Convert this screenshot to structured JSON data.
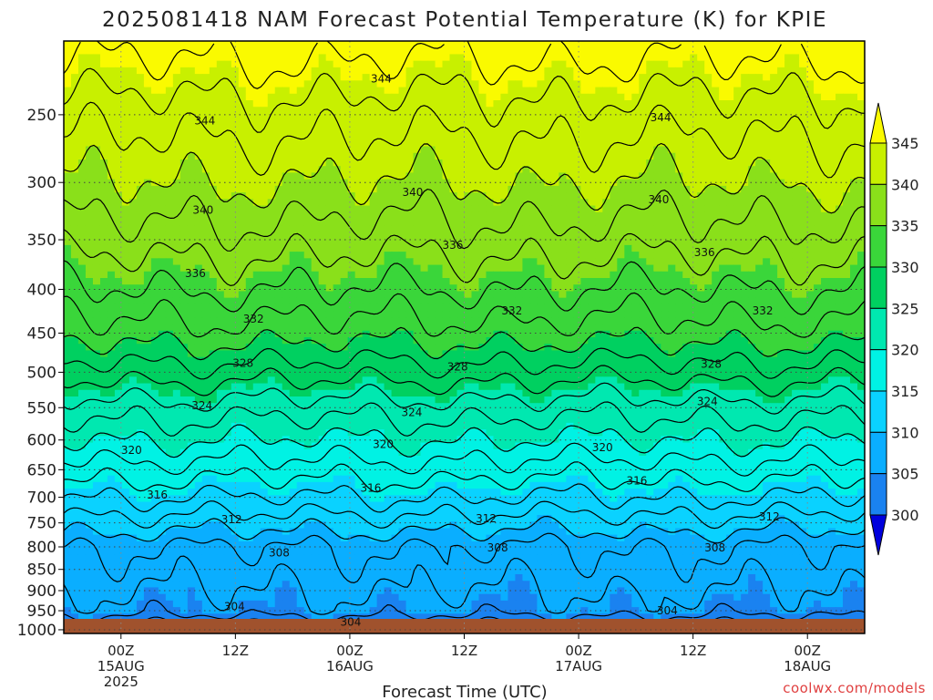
{
  "chart_data": {
    "type": "heatmap",
    "title": "2025081418 NAM Forecast Potential Temperature (K) for KPIE",
    "xlabel": "Forecast Time (UTC)",
    "ylabel": "",
    "x_range_hours": [
      0,
      84
    ],
    "x_ticks": [
      {
        "hour": 6,
        "lines": [
          "00Z",
          "15AUG",
          "2025"
        ]
      },
      {
        "hour": 18,
        "lines": [
          "12Z"
        ]
      },
      {
        "hour": 30,
        "lines": [
          "00Z",
          "16AUG"
        ]
      },
      {
        "hour": 42,
        "lines": [
          "12Z"
        ]
      },
      {
        "hour": 54,
        "lines": [
          "00Z",
          "17AUG"
        ]
      },
      {
        "hour": 66,
        "lines": [
          "12Z"
        ]
      },
      {
        "hour": 78,
        "lines": [
          "00Z",
          "18AUG"
        ]
      }
    ],
    "y_ticks_hpa": [
      250,
      300,
      350,
      400,
      450,
      500,
      550,
      600,
      650,
      700,
      750,
      800,
      850,
      900,
      950,
      1000
    ],
    "ylim_hpa": [
      1010,
      205
    ],
    "grid": true,
    "colorbar": {
      "labels": [
        "345",
        "340",
        "335",
        "330",
        "325",
        "320",
        "315",
        "310",
        "305",
        "300"
      ],
      "levels": [
        300,
        305,
        310,
        315,
        320,
        325,
        330,
        335,
        340,
        345
      ],
      "colors": [
        "#0000dd",
        "#0a55dd",
        "#1a82f0",
        "#0aaeff",
        "#0ad2ff",
        "#00f2e4",
        "#00e8b0",
        "#00d060",
        "#3ad63a",
        "#8ae01a",
        "#c8f000",
        "#fafa00"
      ]
    },
    "theta_profile": [
      {
        "p": 1000,
        "theta": 301
      },
      {
        "p": 975,
        "theta": 303
      },
      {
        "p": 950,
        "theta": 305
      },
      {
        "p": 900,
        "theta": 306
      },
      {
        "p": 850,
        "theta": 307
      },
      {
        "p": 800,
        "theta": 308
      },
      {
        "p": 750,
        "theta": 311
      },
      {
        "p": 700,
        "theta": 314
      },
      {
        "p": 650,
        "theta": 317
      },
      {
        "p": 600,
        "theta": 320
      },
      {
        "p": 550,
        "theta": 323
      },
      {
        "p": 500,
        "theta": 327
      },
      {
        "p": 450,
        "theta": 331
      },
      {
        "p": 400,
        "theta": 334
      },
      {
        "p": 350,
        "theta": 337
      },
      {
        "p": 300,
        "theta": 340
      },
      {
        "p": 250,
        "theta": 343
      },
      {
        "p": 205,
        "theta": 347
      }
    ],
    "contour_labels": [
      {
        "text": "344",
        "hour": 33.3,
        "p": 227
      },
      {
        "text": "344",
        "hour": 14.8,
        "p": 254
      },
      {
        "text": "344",
        "hour": 62.6,
        "p": 252
      },
      {
        "text": "340",
        "hour": 14.6,
        "p": 323
      },
      {
        "text": "340",
        "hour": 36.6,
        "p": 308
      },
      {
        "text": "340",
        "hour": 62.4,
        "p": 314
      },
      {
        "text": "336",
        "hour": 40.8,
        "p": 355
      },
      {
        "text": "336",
        "hour": 13.8,
        "p": 383
      },
      {
        "text": "336",
        "hour": 67.2,
        "p": 362
      },
      {
        "text": "332",
        "hour": 19.9,
        "p": 433
      },
      {
        "text": "332",
        "hour": 47.0,
        "p": 424
      },
      {
        "text": "332",
        "hour": 73.3,
        "p": 424
      },
      {
        "text": "328",
        "hour": 18.8,
        "p": 488
      },
      {
        "text": "328",
        "hour": 41.3,
        "p": 493
      },
      {
        "text": "328",
        "hour": 67.9,
        "p": 489
      },
      {
        "text": "324",
        "hour": 14.5,
        "p": 547
      },
      {
        "text": "324",
        "hour": 36.5,
        "p": 557
      },
      {
        "text": "324",
        "hour": 67.5,
        "p": 541
      },
      {
        "text": "320",
        "hour": 7.1,
        "p": 617
      },
      {
        "text": "320",
        "hour": 33.5,
        "p": 607
      },
      {
        "text": "320",
        "hour": 56.5,
        "p": 612
      },
      {
        "text": "316",
        "hour": 9.8,
        "p": 696
      },
      {
        "text": "316",
        "hour": 32.2,
        "p": 683
      },
      {
        "text": "316",
        "hour": 60.1,
        "p": 670
      },
      {
        "text": "312",
        "hour": 17.6,
        "p": 743
      },
      {
        "text": "312",
        "hour": 44.3,
        "p": 741
      },
      {
        "text": "312",
        "hour": 74.0,
        "p": 738
      },
      {
        "text": "308",
        "hour": 22.6,
        "p": 813
      },
      {
        "text": "308",
        "hour": 45.5,
        "p": 802
      },
      {
        "text": "308",
        "hour": 68.3,
        "p": 802
      },
      {
        "text": "304",
        "hour": 17.9,
        "p": 940
      },
      {
        "text": "304",
        "hour": 30.1,
        "p": 980
      },
      {
        "text": "304",
        "hour": 63.3,
        "p": 950
      }
    ]
  },
  "watermark": "coolwx.com/models",
  "colors": {
    "ground": "#a0522d",
    "grid": "#444444",
    "frame": "#000000",
    "contour": "#000000"
  }
}
